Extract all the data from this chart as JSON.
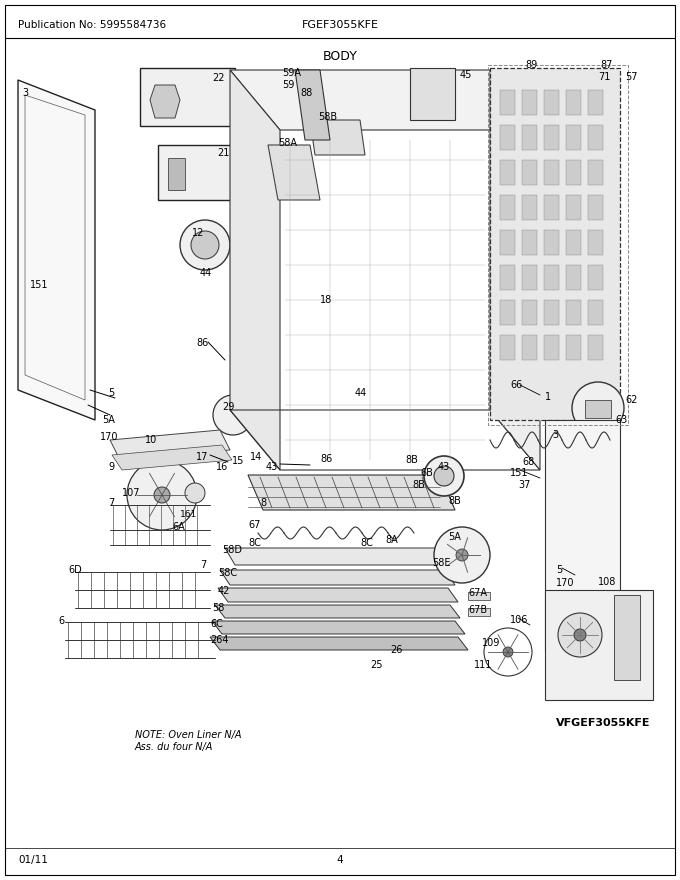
{
  "pub_no": "Publication No: 5995584736",
  "title": "FGEF3055KFE",
  "section": "BODY",
  "date": "01/11",
  "page": "4",
  "model_br": "VFGEF3055KFE",
  "note": "NOTE: Oven Liner N/A\nAss. du four N/A",
  "bg": "#ffffff",
  "fg": "#000000",
  "fig_width": 6.8,
  "fig_height": 8.8,
  "dpi": 100
}
